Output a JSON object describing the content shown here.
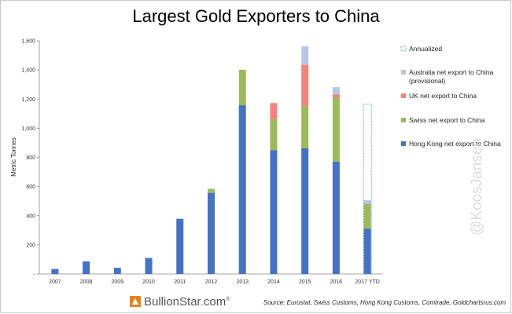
{
  "chart_data": {
    "type": "bar",
    "stacked": true,
    "title": "Largest Gold Exporters to China",
    "ylabel": "Metric Tonnes",
    "xlabel": "",
    "ylim": [
      0,
      1600
    ],
    "yticks": [
      "-",
      "200",
      "400",
      "600",
      "800",
      "1,000",
      "1,200",
      "1,400",
      "1,600"
    ],
    "yticks_values": [
      0,
      200,
      400,
      600,
      800,
      1000,
      1200,
      1400,
      1600
    ],
    "grid": false,
    "legend_position": "right",
    "categories": [
      "2007",
      "2008",
      "2009",
      "2010",
      "2011",
      "2012",
      "2013",
      "2014",
      "2015",
      "2016",
      "2017 YTD"
    ],
    "series": [
      {
        "name": "Hong Kong net export to China",
        "color": "#4472c4",
        "values": [
          34,
          86,
          42,
          110,
          379,
          557,
          1158,
          850,
          862,
          771,
          310
        ]
      },
      {
        "name": "Swiss net export to China",
        "color": "#9bbb59",
        "values": [
          0,
          0,
          0,
          0,
          0,
          27,
          243,
          213,
          290,
          440,
          173
        ]
      },
      {
        "name": "UK net export to China",
        "color": "#f4837d",
        "values": [
          0,
          0,
          0,
          0,
          0,
          0,
          0,
          110,
          283,
          20,
          0
        ]
      },
      {
        "name": "Australia net export to China (provisional)",
        "color": "#b4c7e7",
        "values": [
          0,
          0,
          0,
          0,
          0,
          0,
          0,
          0,
          127,
          51,
          23
        ]
      },
      {
        "name": "Annualized",
        "style": "dashed-outline",
        "values": [
          0,
          0,
          0,
          0,
          0,
          0,
          0,
          0,
          0,
          0,
          1165
        ]
      }
    ],
    "legend_order": [
      "Annualized",
      "Australia net export to China (provisional)",
      "UK net export to China",
      "Swiss net export to China",
      "Hong Kong net export to China"
    ]
  },
  "legend": {
    "annualized": "Annualized",
    "australia_line1": "Australia net export to China",
    "australia_line2": "(provisional)",
    "uk": "UK net export to China",
    "swiss": "Swiss net export to China",
    "hongkong": "Hong Kong net export to China"
  },
  "watermark": "@KoosJansen",
  "logo": {
    "name": "BullionStar",
    "dot": ".",
    "suffix": "com",
    "mark": "®"
  },
  "source": "Source: Eurostat, Swiss Customs, Hong Kong Customs, Comtrade, Goldchartsrus.com"
}
